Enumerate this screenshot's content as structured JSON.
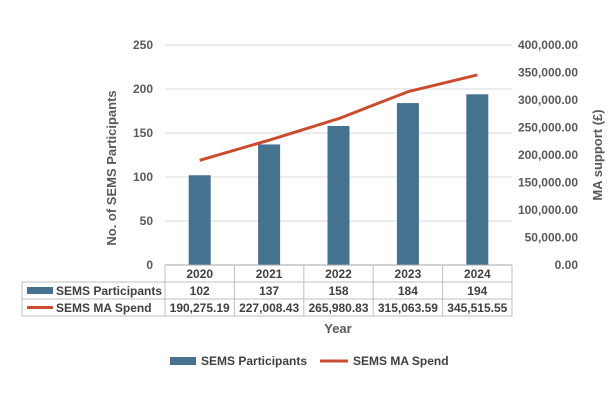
{
  "chart_data": {
    "type": "bar",
    "categories": [
      "2020",
      "2021",
      "2022",
      "2023",
      "2024"
    ],
    "series": [
      {
        "name": "SEMS Participants",
        "type": "bar",
        "axis": "left",
        "color": "#44728F",
        "values": [
          102,
          137,
          158,
          184,
          194
        ],
        "labels": [
          "102",
          "137",
          "158",
          "184",
          "194"
        ]
      },
      {
        "name": "SEMS MA Spend",
        "type": "line",
        "axis": "right",
        "color": "#C94C2E",
        "values": [
          190275.19,
          227008.43,
          265980.83,
          315063.59,
          345515.55
        ],
        "labels": [
          "190,275.19",
          "227,008.43",
          "265,980.83",
          "315,063.59",
          "345,515.55"
        ]
      }
    ],
    "xlabel": "Year",
    "ylabel": "No. of SEMS Participants",
    "y2label": "MA support (£)",
    "ylim": [
      0,
      250
    ],
    "y2lim": [
      0,
      400000
    ],
    "yticks": [
      "0",
      "50",
      "100",
      "150",
      "200",
      "250"
    ],
    "y2ticks": [
      "0.00",
      "50,000.00",
      "100,000.00",
      "150,000.00",
      "200,000.00",
      "250,000.00",
      "300,000.00",
      "350,000.00",
      "400,000.00"
    ],
    "grid": true,
    "legend": "bottom",
    "data_table": true
  }
}
